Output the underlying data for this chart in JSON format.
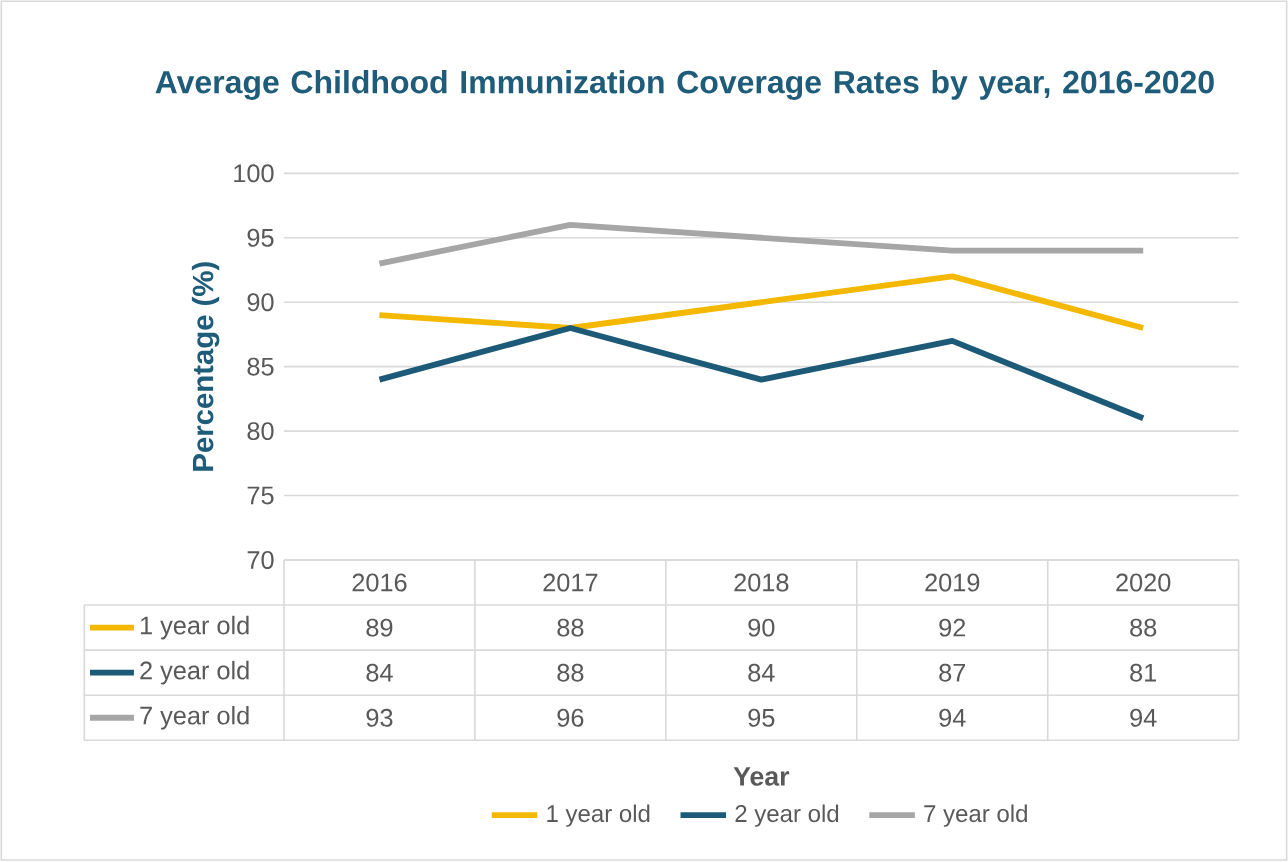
{
  "chart_data": {
    "type": "line",
    "title": "Average Childhood Immunization Coverage Rates by year, 2016-2020",
    "annotations": [
      "Year"
    ],
    "ylabel": "Percentage (%)",
    "categories": [
      "2016",
      "2017",
      "2018",
      "2019",
      "2020"
    ],
    "series": [
      {
        "name": "1 year old",
        "color": "#f5b800",
        "values": [
          89,
          88,
          90,
          92,
          88
        ]
      },
      {
        "name": "2 year old",
        "color": "#1c5a78",
        "values": [
          84,
          88,
          84,
          87,
          81
        ]
      },
      {
        "name": "7 year old",
        "color": "#a6a6a6",
        "values": [
          93,
          96,
          95,
          94,
          94
        ]
      }
    ],
    "ylim": [
      70,
      100
    ],
    "yticks": [
      70,
      75,
      80,
      85,
      90,
      95,
      100
    ],
    "grid": "y",
    "legend": "bottom",
    "data_labels": true
  }
}
